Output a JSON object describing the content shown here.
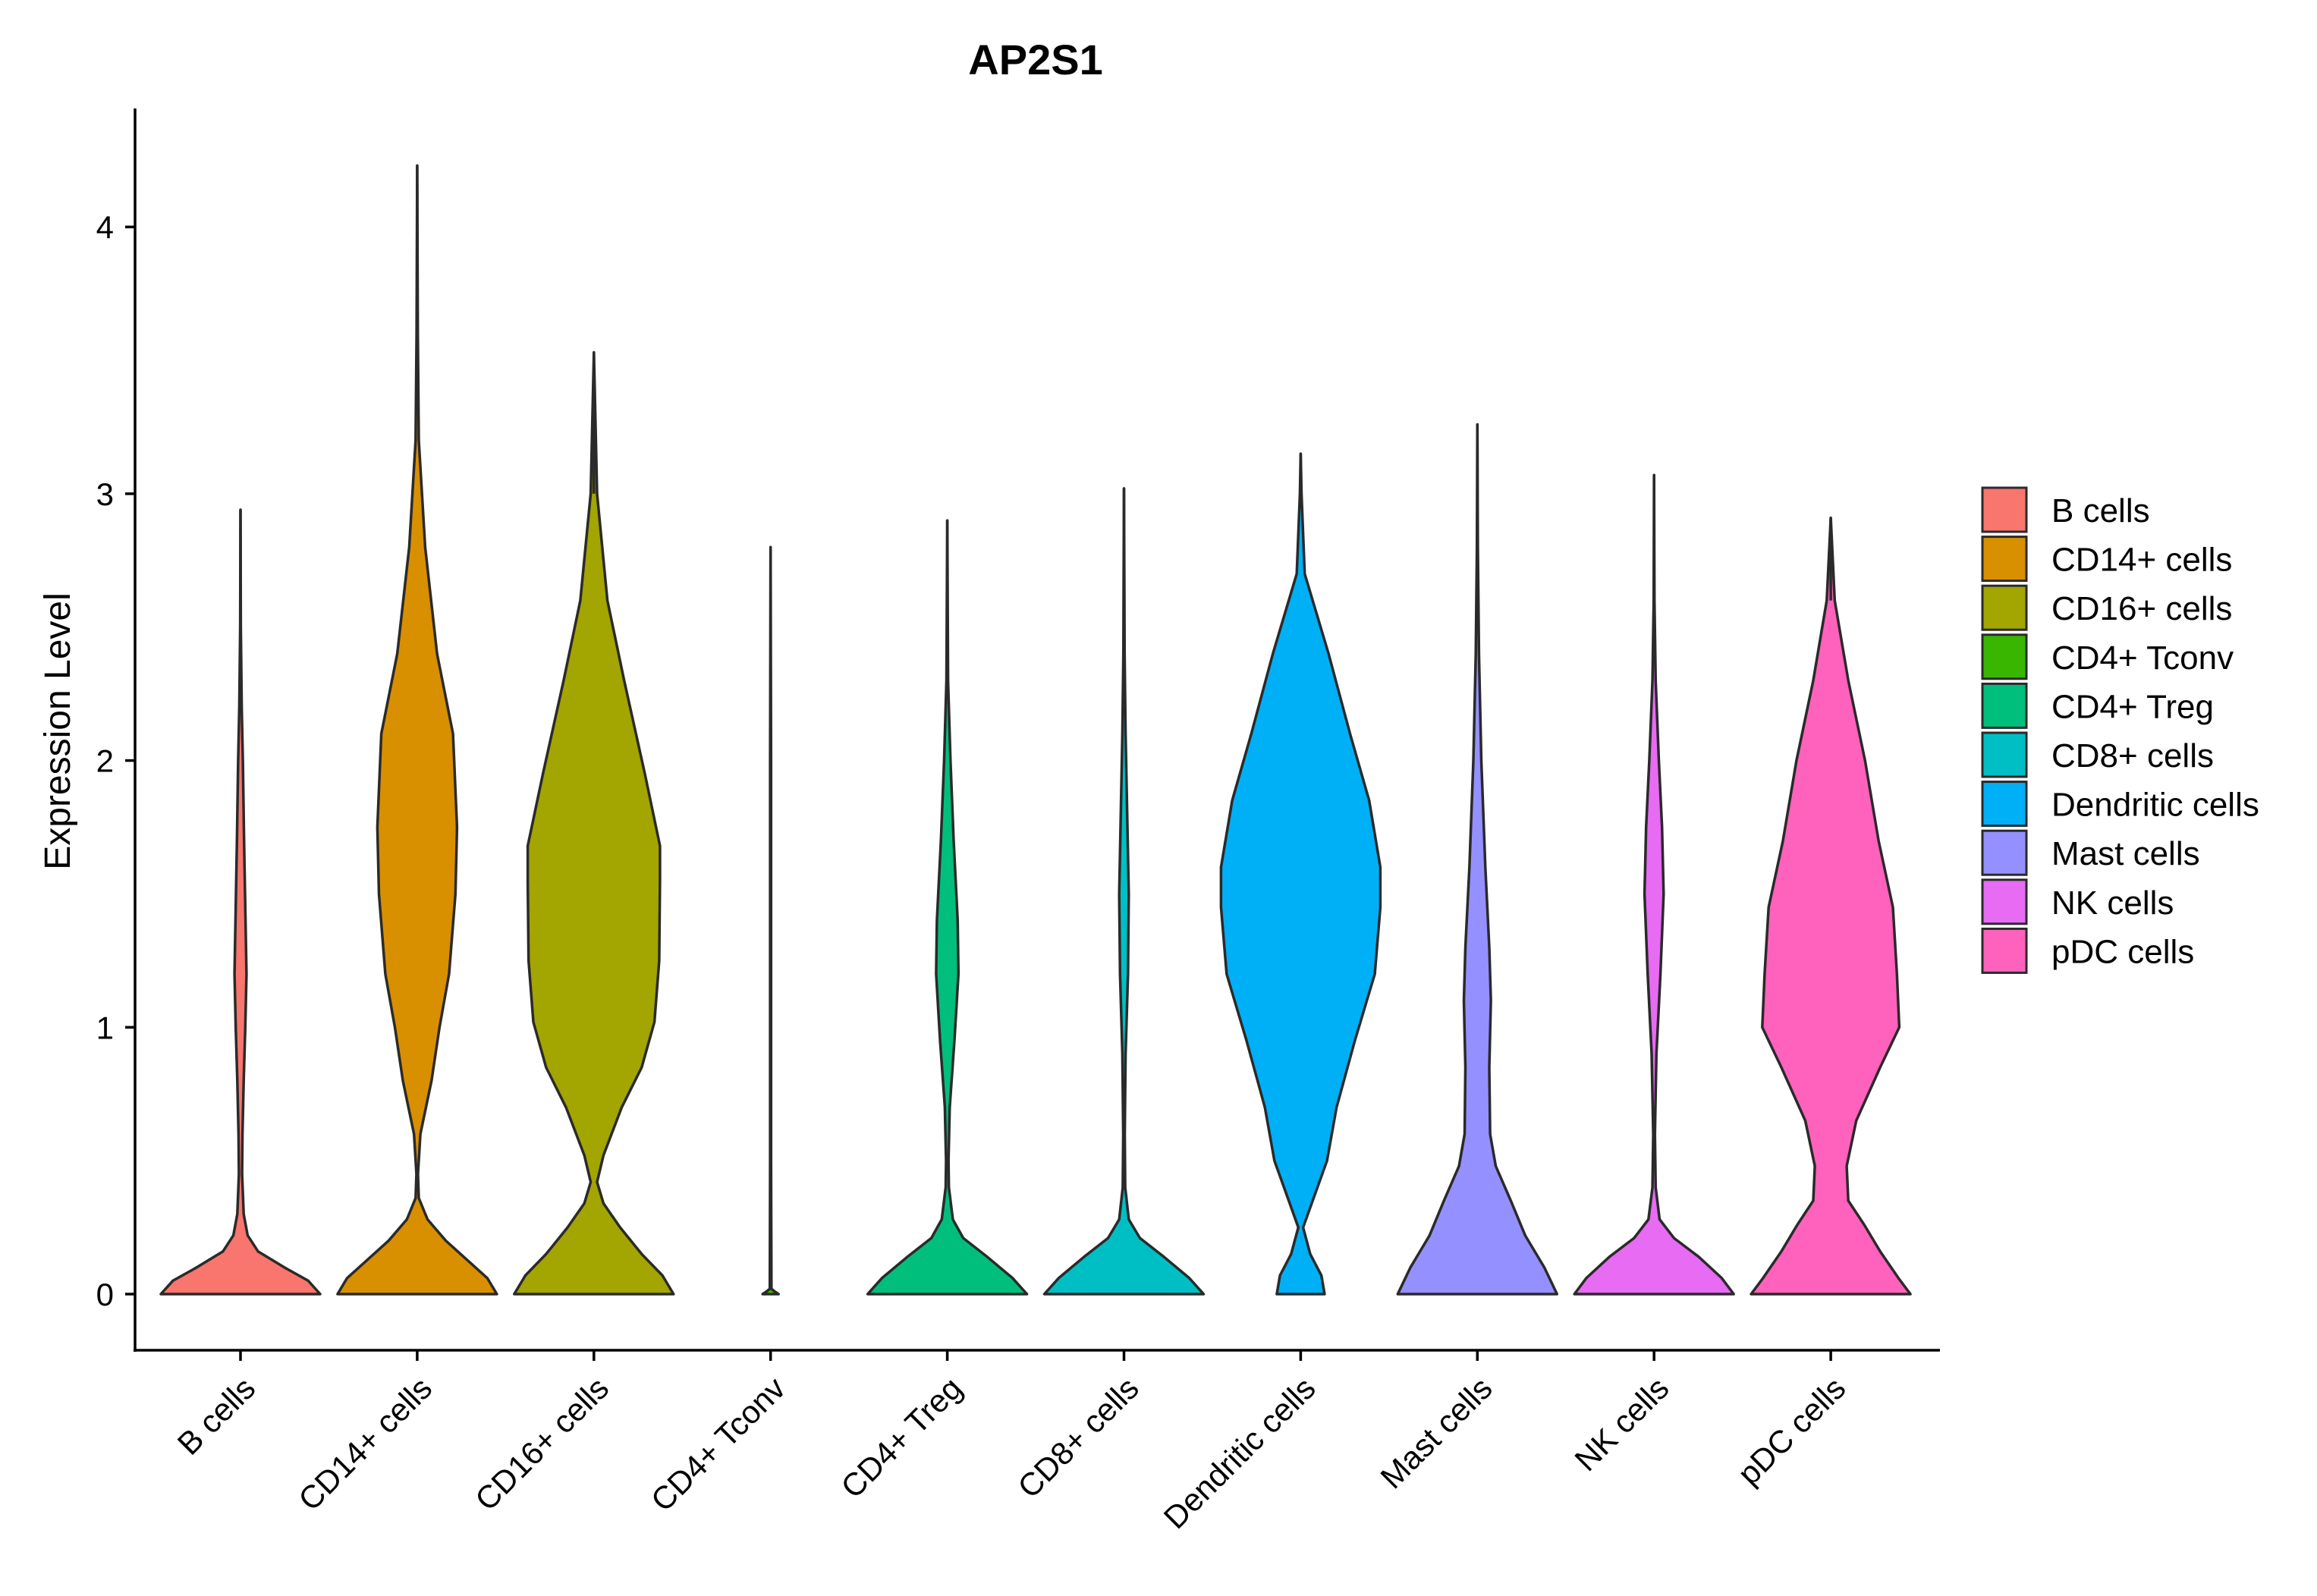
{
  "chart_data": {
    "type": "violin",
    "title": "AP2S1",
    "xlabel": "",
    "ylabel": "Expression Level",
    "ylim": [
      -0.2,
      4.45
    ],
    "yticks": [
      0,
      1,
      2,
      3,
      4
    ],
    "categories": [
      "B cells",
      "CD14+ cells",
      "CD16+ cells",
      "CD4+ Tconv",
      "CD4+ Treg",
      "CD8+ cells",
      "Dendritic cells",
      "Mast cells",
      "NK cells",
      "pDC cells"
    ],
    "colors": [
      "#F8766D",
      "#D89000",
      "#A3A500",
      "#39B600",
      "#00BF7D",
      "#00BFC4",
      "#00B0F6",
      "#9590FF",
      "#E76BF3",
      "#FF62BC"
    ],
    "max_values": [
      2.94,
      4.23,
      3.53,
      2.8,
      2.9,
      3.02,
      3.15,
      3.26,
      3.07,
      2.91
    ],
    "density_profiles": [
      [
        [
          0,
          1.0
        ],
        [
          0.05,
          0.85
        ],
        [
          0.1,
          0.55
        ],
        [
          0.16,
          0.22
        ],
        [
          0.22,
          0.09
        ],
        [
          0.3,
          0.04
        ],
        [
          0.45,
          0.02
        ],
        [
          0.6,
          0.025
        ],
        [
          0.8,
          0.04
        ],
        [
          1.0,
          0.06
        ],
        [
          1.2,
          0.075
        ],
        [
          1.45,
          0.06
        ],
        [
          1.7,
          0.045
        ],
        [
          2.0,
          0.03
        ],
        [
          2.2,
          0.015
        ],
        [
          2.5,
          0.004
        ],
        [
          2.94,
          0
        ]
      ],
      [
        [
          0,
          1.0
        ],
        [
          0.06,
          0.88
        ],
        [
          0.13,
          0.62
        ],
        [
          0.2,
          0.36
        ],
        [
          0.28,
          0.13
        ],
        [
          0.36,
          0.02
        ],
        [
          0.45,
          0.01
        ],
        [
          0.6,
          0.04
        ],
        [
          0.8,
          0.18
        ],
        [
          1.0,
          0.28
        ],
        [
          1.2,
          0.4
        ],
        [
          1.5,
          0.48
        ],
        [
          1.75,
          0.5
        ],
        [
          2.1,
          0.45
        ],
        [
          2.4,
          0.25
        ],
        [
          2.8,
          0.1
        ],
        [
          3.2,
          0.02
        ],
        [
          3.6,
          0.008
        ],
        [
          4.23,
          0
        ]
      ],
      [
        [
          0,
          1.0
        ],
        [
          0.07,
          0.86
        ],
        [
          0.15,
          0.6
        ],
        [
          0.25,
          0.33
        ],
        [
          0.34,
          0.12
        ],
        [
          0.42,
          0.04
        ],
        [
          0.52,
          0.12
        ],
        [
          0.7,
          0.35
        ],
        [
          0.85,
          0.6
        ],
        [
          1.02,
          0.76
        ],
        [
          1.25,
          0.82
        ],
        [
          1.55,
          0.83
        ],
        [
          1.68,
          0.83
        ],
        [
          1.95,
          0.64
        ],
        [
          2.3,
          0.38
        ],
        [
          2.6,
          0.17
        ],
        [
          3.0,
          0.04
        ],
        [
          3.53,
          0
        ]
      ],
      [
        [
          0,
          0.1
        ],
        [
          0.01,
          0.05
        ],
        [
          0.02,
          0.01
        ],
        [
          0.5,
          0.006
        ],
        [
          1.0,
          0.006
        ],
        [
          2.0,
          0.006
        ],
        [
          2.8,
          0
        ]
      ],
      [
        [
          0,
          1.0
        ],
        [
          0.06,
          0.82
        ],
        [
          0.14,
          0.5
        ],
        [
          0.21,
          0.2
        ],
        [
          0.28,
          0.07
        ],
        [
          0.4,
          0.02
        ],
        [
          0.5,
          0.015
        ],
        [
          0.7,
          0.03
        ],
        [
          0.95,
          0.09
        ],
        [
          1.2,
          0.14
        ],
        [
          1.4,
          0.13
        ],
        [
          1.7,
          0.08
        ],
        [
          2.0,
          0.04
        ],
        [
          2.3,
          0.01
        ],
        [
          2.9,
          0
        ]
      ],
      [
        [
          0,
          1.0
        ],
        [
          0.06,
          0.82
        ],
        [
          0.14,
          0.5
        ],
        [
          0.21,
          0.2
        ],
        [
          0.28,
          0.06
        ],
        [
          0.4,
          0.015
        ],
        [
          0.6,
          0.01
        ],
        [
          0.9,
          0.02
        ],
        [
          1.2,
          0.05
        ],
        [
          1.5,
          0.06
        ],
        [
          1.8,
          0.04
        ],
        [
          2.1,
          0.02
        ],
        [
          2.4,
          0.008
        ],
        [
          3.02,
          0
        ]
      ],
      [
        [
          0,
          0.3
        ],
        [
          0.07,
          0.26
        ],
        [
          0.15,
          0.12
        ],
        [
          0.25,
          0.03
        ],
        [
          0.35,
          0.15
        ],
        [
          0.5,
          0.33
        ],
        [
          0.7,
          0.45
        ],
        [
          0.95,
          0.68
        ],
        [
          1.2,
          0.93
        ],
        [
          1.45,
          1.0
        ],
        [
          1.6,
          1.0
        ],
        [
          1.85,
          0.86
        ],
        [
          2.1,
          0.62
        ],
        [
          2.4,
          0.35
        ],
        [
          2.7,
          0.05
        ],
        [
          3.0,
          0.01
        ],
        [
          3.15,
          0
        ]
      ],
      [
        [
          0,
          1.0
        ],
        [
          0.1,
          0.84
        ],
        [
          0.22,
          0.6
        ],
        [
          0.35,
          0.42
        ],
        [
          0.48,
          0.23
        ],
        [
          0.6,
          0.16
        ],
        [
          0.85,
          0.15
        ],
        [
          1.1,
          0.17
        ],
        [
          1.3,
          0.15
        ],
        [
          1.6,
          0.1
        ],
        [
          2.0,
          0.05
        ],
        [
          2.4,
          0.02
        ],
        [
          2.8,
          0.006
        ],
        [
          3.26,
          0
        ]
      ],
      [
        [
          0,
          1.0
        ],
        [
          0.06,
          0.85
        ],
        [
          0.14,
          0.56
        ],
        [
          0.21,
          0.25
        ],
        [
          0.28,
          0.07
        ],
        [
          0.4,
          0.02
        ],
        [
          0.6,
          0.01
        ],
        [
          0.9,
          0.03
        ],
        [
          1.2,
          0.08
        ],
        [
          1.5,
          0.12
        ],
        [
          1.75,
          0.1
        ],
        [
          2.0,
          0.06
        ],
        [
          2.3,
          0.02
        ],
        [
          2.6,
          0.005
        ],
        [
          3.07,
          0
        ]
      ],
      [
        [
          0,
          1.0
        ],
        [
          0.06,
          0.85
        ],
        [
          0.16,
          0.62
        ],
        [
          0.26,
          0.42
        ],
        [
          0.35,
          0.22
        ],
        [
          0.48,
          0.2
        ],
        [
          0.65,
          0.32
        ],
        [
          0.85,
          0.62
        ],
        [
          1.0,
          0.86
        ],
        [
          1.2,
          0.83
        ],
        [
          1.45,
          0.78
        ],
        [
          1.7,
          0.6
        ],
        [
          2.0,
          0.43
        ],
        [
          2.3,
          0.22
        ],
        [
          2.6,
          0.05
        ],
        [
          2.91,
          0
        ]
      ]
    ]
  }
}
